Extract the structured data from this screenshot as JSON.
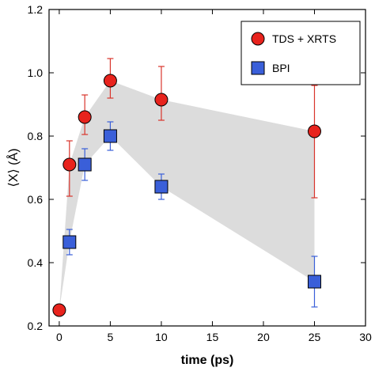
{
  "chart_data": {
    "type": "scatter",
    "title": "",
    "xlabel": "time (ps)",
    "ylabel": "⟨X⟩ (Å)",
    "xlim": [
      -1,
      30
    ],
    "ylim": [
      0.2,
      1.2
    ],
    "xticks": [
      0,
      5,
      10,
      15,
      20,
      25,
      30
    ],
    "yticks": [
      0.2,
      0.4,
      0.6,
      0.8,
      1.0,
      1.2
    ],
    "ytick_labels": [
      "0.2",
      "0.4",
      "0.6",
      "0.8",
      "1.0",
      "1.2"
    ],
    "grid": false,
    "legend_position": "top-right",
    "shaded_band": {
      "color": "#dcdcdc",
      "upper": [
        [
          0,
          0.25
        ],
        [
          1,
          0.71
        ],
        [
          2.5,
          0.86
        ],
        [
          5,
          0.975
        ],
        [
          10,
          0.915
        ],
        [
          25,
          0.815
        ]
      ],
      "lower": [
        [
          25,
          0.34
        ],
        [
          10,
          0.64
        ],
        [
          5,
          0.8
        ],
        [
          2.5,
          0.71
        ],
        [
          1,
          0.465
        ],
        [
          0,
          0.25
        ]
      ]
    },
    "series": [
      {
        "name": "TDS + XRTS",
        "marker": "circle",
        "color": "#e8231d",
        "error_color": "#d9342b",
        "points": [
          {
            "x": 0,
            "y": 0.25,
            "err_low": 0,
            "err_high": 0
          },
          {
            "x": 1,
            "y": 0.71,
            "err_low": 0.1,
            "err_high": 0.075
          },
          {
            "x": 2.5,
            "y": 0.86,
            "err_low": 0.055,
            "err_high": 0.07
          },
          {
            "x": 5,
            "y": 0.975,
            "err_low": 0.055,
            "err_high": 0.07
          },
          {
            "x": 10,
            "y": 0.915,
            "err_low": 0.065,
            "err_high": 0.105
          },
          {
            "x": 25,
            "y": 0.815,
            "err_low": 0.21,
            "err_high": 0.145
          }
        ]
      },
      {
        "name": "BPI",
        "marker": "square",
        "color": "#3a5fd9",
        "error_color": "#3a5fd9",
        "points": [
          {
            "x": 1,
            "y": 0.465,
            "err_low": 0.04,
            "err_high": 0.04
          },
          {
            "x": 2.5,
            "y": 0.71,
            "err_low": 0.05,
            "err_high": 0.05
          },
          {
            "x": 5,
            "y": 0.8,
            "err_low": 0.045,
            "err_high": 0.045
          },
          {
            "x": 10,
            "y": 0.64,
            "err_low": 0.04,
            "err_high": 0.04
          },
          {
            "x": 25,
            "y": 0.34,
            "err_low": 0.08,
            "err_high": 0.08
          }
        ]
      }
    ]
  }
}
